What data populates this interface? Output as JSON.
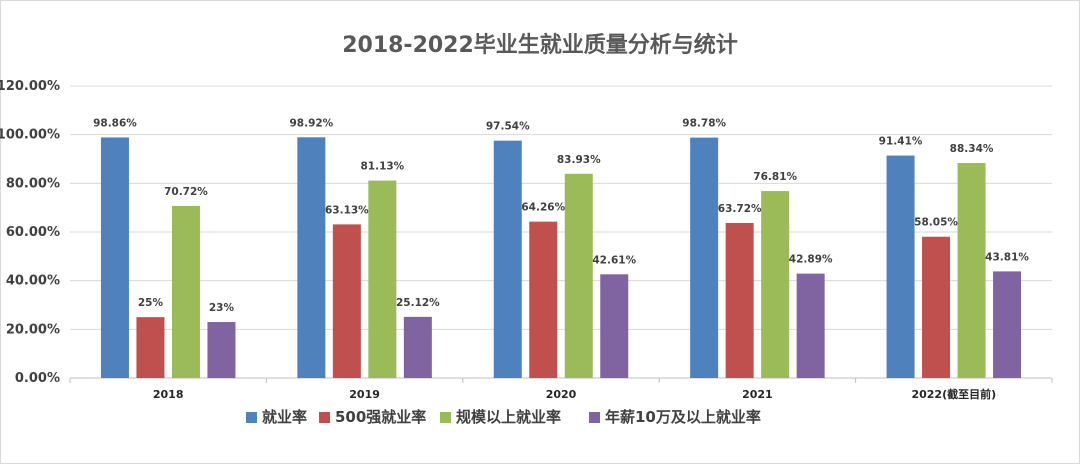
{
  "chart_data": {
    "type": "bar",
    "title": "2018-2022毕业生就业质量分析与统计",
    "categories": [
      "2018",
      "2019",
      "2020",
      "2021",
      "2022(截至目前)"
    ],
    "ylim": [
      0,
      120
    ],
    "yticks": [
      0,
      20,
      40,
      60,
      80,
      100,
      120
    ],
    "ytick_labels": [
      "0.00%",
      "20.00%",
      "40.00%",
      "60.00%",
      "80.00%",
      "100.00%",
      "120.00%"
    ],
    "grid": true,
    "legend_position": "bottom",
    "series": [
      {
        "name": "就业率",
        "color": "#4f81bd",
        "values": [
          98.86,
          98.92,
          97.54,
          98.78,
          91.41
        ],
        "labels": [
          "98.86%",
          "98.92%",
          "97.54%",
          "98.78%",
          "91.41%"
        ]
      },
      {
        "name": "500强就业率",
        "color": "#c0504d",
        "values": [
          25,
          63.13,
          64.26,
          63.72,
          58.05
        ],
        "labels": [
          "25%",
          "63.13%",
          "64.26%",
          "63.72%",
          "58.05%"
        ]
      },
      {
        "name": "规模以上就业率",
        "color": "#9bbb59",
        "values": [
          70.72,
          81.13,
          83.93,
          76.81,
          88.34
        ],
        "labels": [
          "70.72%",
          "81.13%",
          "83.93%",
          "76.81%",
          "88.34%"
        ]
      },
      {
        "name": "年薪10万及以上就业率",
        "color": "#8064a2",
        "values": [
          23,
          25.12,
          42.61,
          42.89,
          43.81
        ],
        "labels": [
          "23%",
          "25.12%",
          "42.61%",
          "42.89%",
          "43.81%"
        ]
      }
    ]
  }
}
